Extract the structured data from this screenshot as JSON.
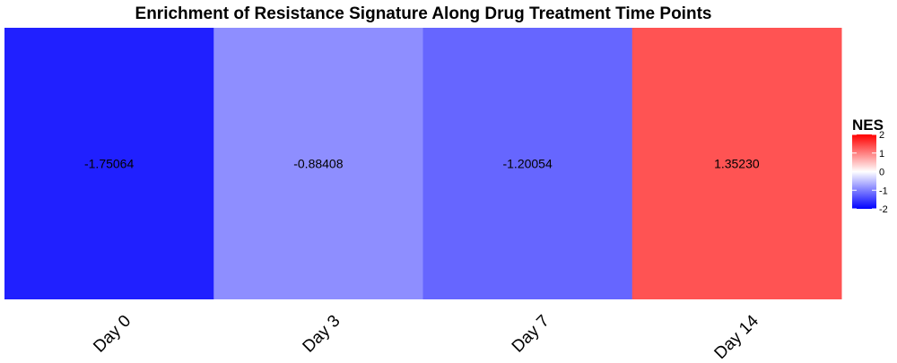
{
  "chart_data": {
    "type": "heatmap",
    "title": "Enrichment of Resistance Signature Along Drug Treatment Time Points",
    "xlabel": "",
    "ylabel": "",
    "categories": [
      "Day 0",
      "Day 3",
      "Day 7",
      "Day 14"
    ],
    "values": [
      -1.75064,
      -0.88408,
      -1.20054,
      1.3523
    ],
    "value_labels": [
      "-1.75064",
      "-0.88408",
      "-1.20054",
      "1.35230"
    ],
    "legend": {
      "title": "NES",
      "position": "right",
      "ticks": [
        2,
        1,
        0,
        -1,
        -2
      ],
      "tick_labels": [
        "2",
        "1",
        "0",
        "-1",
        "-2"
      ],
      "range": [
        -2,
        2
      ]
    },
    "color_scale": {
      "low": "#0000ff",
      "mid": "#ffffff",
      "high": "#ff0000"
    },
    "grid": false
  }
}
